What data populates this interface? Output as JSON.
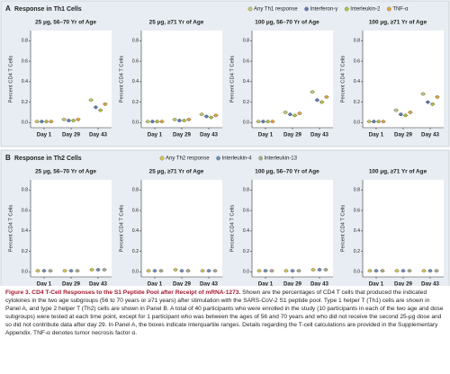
{
  "panels": [
    {
      "label": "A",
      "title": "Response in Th1 Cells",
      "series": [
        {
          "name": "Any Th1 response",
          "color": "#c9c86b"
        },
        {
          "name": "Interferon-γ",
          "color": "#5b7fb5"
        },
        {
          "name": "Interleukin-2",
          "color": "#b3c23a"
        },
        {
          "name": "TNF-α",
          "color": "#e7a23b"
        }
      ],
      "ylabel": "Percent CD4 T Cells",
      "categories": [
        "Day 1",
        "Day 29",
        "Day 43"
      ],
      "ylim": [
        -0.05,
        0.9
      ],
      "yticks": [
        {
          "value": 0,
          "label": "0.0"
        },
        0.2,
        0.4,
        0.6,
        0.8
      ],
      "charts": [
        {
          "type": "dot",
          "title": "25 μg, 56–70 Yr of Age",
          "values": [
            [
              0.01,
              0.03,
              0.22
            ],
            [
              0.01,
              0.02,
              0.15
            ],
            [
              0.01,
              0.02,
              0.12
            ],
            [
              0.01,
              0.03,
              0.18
            ]
          ]
        },
        {
          "type": "dot",
          "title": "25 μg, ≥71 Yr of Age",
          "values": [
            [
              0.01,
              0.03,
              0.08
            ],
            [
              0.01,
              0.02,
              0.06
            ],
            [
              0.01,
              0.02,
              0.05
            ],
            [
              0.01,
              0.03,
              0.07
            ]
          ]
        },
        {
          "type": "dot",
          "title": "100 μg, 56–70 Yr of Age",
          "values": [
            [
              0.01,
              0.1,
              0.3
            ],
            [
              0.01,
              0.08,
              0.22
            ],
            [
              0.01,
              0.07,
              0.2
            ],
            [
              0.01,
              0.09,
              0.25
            ]
          ]
        },
        {
          "type": "dot",
          "title": "100 μg, ≥71 Yr of Age",
          "values": [
            [
              0.01,
              0.12,
              0.28
            ],
            [
              0.01,
              0.08,
              0.2
            ],
            [
              0.01,
              0.07,
              0.18
            ],
            [
              0.01,
              0.1,
              0.25
            ]
          ]
        }
      ]
    },
    {
      "label": "B",
      "title": "Response in Th2 Cells",
      "series": [
        {
          "name": "Any Th2 response",
          "color": "#d8c64a"
        },
        {
          "name": "Interleukin-4",
          "color": "#6f8fb8"
        },
        {
          "name": "Interleukin-13",
          "color": "#a9ad8e"
        }
      ],
      "ylabel": "Percent CD4 T Cells",
      "categories": [
        "Day 1",
        "Day 29",
        "Day 43"
      ],
      "ylim": [
        -0.05,
        0.9
      ],
      "yticks": [
        {
          "value": 0,
          "label": "0.0"
        },
        0.2,
        0.4,
        0.6,
        0.8
      ],
      "charts": [
        {
          "type": "dot",
          "title": "25 μg, 56–70 Yr of Age",
          "values": [
            [
              0.01,
              0.01,
              0.02
            ],
            [
              0.01,
              0.01,
              0.02
            ],
            [
              0.01,
              0.01,
              0.02
            ]
          ]
        },
        {
          "type": "dot",
          "title": "25 μg, ≥71 Yr of Age",
          "values": [
            [
              0.01,
              0.02,
              0.01
            ],
            [
              0.01,
              0.01,
              0.01
            ],
            [
              0.01,
              0.01,
              0.01
            ]
          ]
        },
        {
          "type": "dot",
          "title": "100 μg, 56–70 Yr of Age",
          "values": [
            [
              0.01,
              0.01,
              0.02
            ],
            [
              0.01,
              0.01,
              0.02
            ],
            [
              0.01,
              0.01,
              0.02
            ]
          ]
        },
        {
          "type": "dot",
          "title": "100 μg, ≥71 Yr of Age",
          "values": [
            [
              0.01,
              0.01,
              0.01
            ],
            [
              0.01,
              0.01,
              0.01
            ],
            [
              0.01,
              0.01,
              0.01
            ]
          ]
        }
      ]
    }
  ],
  "caption": {
    "title": "Figure 3. CD4 T-Cell Responses to the S1 Peptide Pool after Receipt of mRNA-1273.",
    "text": "Shown are the percentages of CD4 T cells that produced the indicated cytokines in the two age subgroups (56 to 70 years or ≥71 years) after stimulation with the SARS-CoV-2 S1 peptide pool. Type 1 helper T (Th1) cells are shown in Panel A, and type 2 helper T (Th2) cells are shown in Panel B. A total of 40 participants who were enrolled in the study (10 participants in each of the two age and dose subgroups) were tested at each time point, except for 1 participant who was between the ages of 56 and 70 years and who did not receive the second 25-μg dose and so did not contribute data after day 29. In Panel A, the boxes indicate interquartile ranges. Details regarding the T-cell calculations are provided in the Supplementary Appendix. TNF-α denotes tumor necrosis factor α."
  }
}
